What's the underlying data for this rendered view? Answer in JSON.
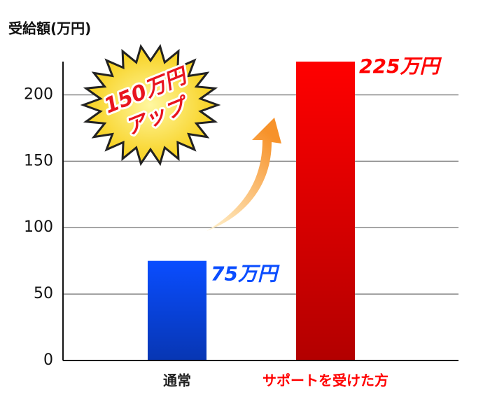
{
  "chart_data": {
    "type": "bar",
    "y_axis_label": "受給額(万円)",
    "categories": [
      "通常",
      "サポートを受けた方"
    ],
    "category_label_colors": [
      "#222222",
      "#ff0000"
    ],
    "values": [
      75,
      225
    ],
    "value_labels": [
      "75万円",
      "225万円"
    ],
    "colors": [
      "#0a4dff",
      "#ff0000"
    ],
    "annotation": [
      "150万円",
      "アップ"
    ],
    "ylim": [
      0,
      225
    ],
    "yticks": [
      0,
      50,
      100,
      150,
      200
    ],
    "grid": true
  }
}
